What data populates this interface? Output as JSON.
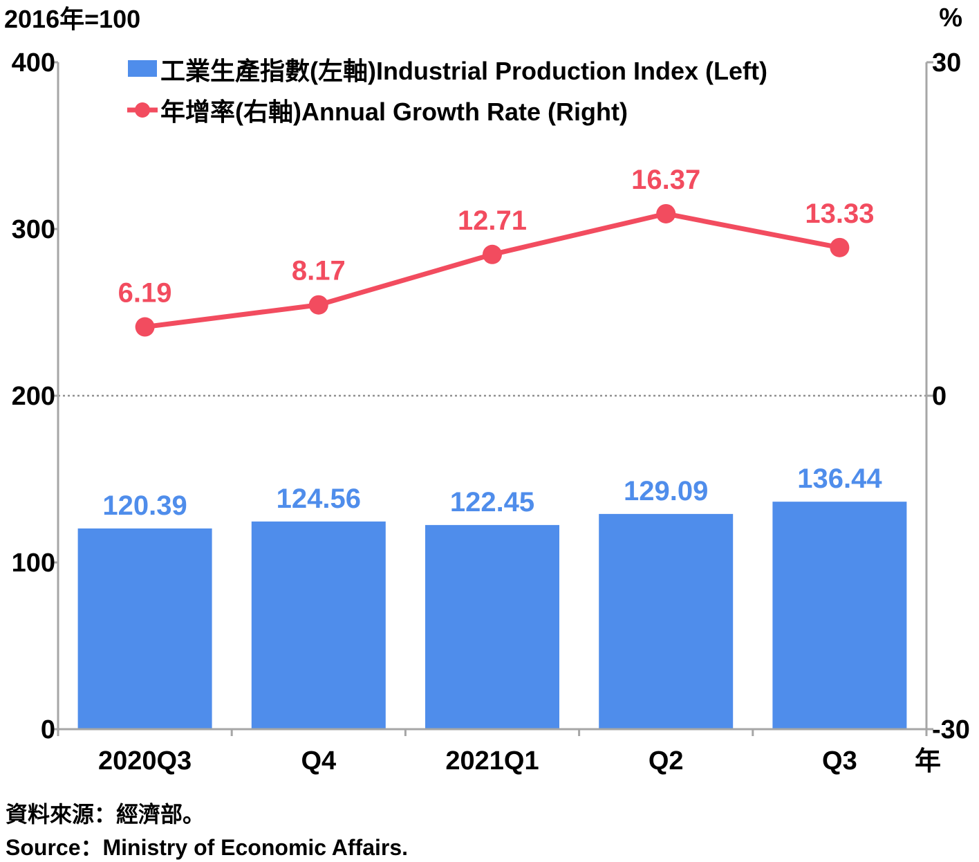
{
  "chart_data": {
    "type": "bar",
    "categories": [
      "2020Q3",
      "Q4",
      "2021Q1",
      "Q2",
      "Q3"
    ],
    "series": [
      {
        "name": "工業生產指數(左軸)Industrial Production Index (Left)",
        "type": "bar",
        "axis": "left",
        "values": [
          120.39,
          124.56,
          122.45,
          129.09,
          136.44
        ],
        "labels": [
          "120.39",
          "124.56",
          "122.45",
          "129.09",
          "136.44"
        ]
      },
      {
        "name": "年增率(右軸)Annual Growth Rate (Right)",
        "type": "line",
        "axis": "right",
        "values": [
          6.19,
          8.17,
          12.71,
          16.37,
          13.33
        ],
        "labels": [
          "6.19",
          "8.17",
          "12.71",
          "16.37",
          "13.33"
        ]
      }
    ],
    "left_axis": {
      "unit_label": "2016年=100",
      "ylim": [
        0,
        400
      ],
      "ticks": [
        "0",
        "100",
        "200",
        "300",
        "400"
      ]
    },
    "right_axis": {
      "unit_label": "%",
      "ylim": [
        -30,
        30
      ],
      "ticks": [
        "-30",
        "0",
        "30"
      ]
    },
    "x_unit_label": "年",
    "zero_line": "dotted",
    "grid": false,
    "legend_position": "top-left",
    "colors": {
      "bar": "#4f8deb",
      "line": "#f24c5f",
      "axis": "#a6a6a6"
    }
  },
  "source": {
    "zh": "資料來源：經濟部。",
    "en": "Source：Ministry of Economic Affairs."
  }
}
